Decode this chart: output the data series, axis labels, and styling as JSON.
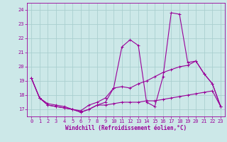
{
  "xlabel": "Windchill (Refroidissement éolien,°C)",
  "background_color": "#cce8e8",
  "grid_color": "#aacfcf",
  "line_color": "#990099",
  "xlim": [
    -0.5,
    23.5
  ],
  "ylim": [
    16.5,
    24.5
  ],
  "yticks": [
    17,
    18,
    19,
    20,
    21,
    22,
    23,
    24
  ],
  "xticks": [
    0,
    1,
    2,
    3,
    4,
    5,
    6,
    7,
    8,
    9,
    10,
    11,
    12,
    13,
    14,
    15,
    16,
    17,
    18,
    19,
    20,
    21,
    22,
    23
  ],
  "series": [
    {
      "x": [
        0,
        1,
        2,
        3,
        4,
        5,
        6,
        7,
        8,
        9,
        10,
        11,
        12,
        13,
        14,
        15,
        16,
        17,
        18,
        19,
        20,
        21,
        22,
        23
      ],
      "y": [
        19.2,
        17.8,
        17.3,
        17.2,
        17.1,
        17.0,
        16.8,
        17.0,
        17.3,
        17.5,
        18.5,
        21.4,
        21.9,
        21.5,
        17.5,
        17.2,
        19.3,
        23.8,
        23.7,
        20.3,
        20.4,
        19.5,
        18.8,
        17.2
      ]
    },
    {
      "x": [
        0,
        1,
        2,
        3,
        4,
        5,
        6,
        7,
        8,
        9,
        10,
        11,
        12,
        13,
        14,
        15,
        16,
        17,
        18,
        19,
        20,
        21,
        22,
        23
      ],
      "y": [
        19.2,
        17.8,
        17.4,
        17.3,
        17.2,
        17.0,
        16.9,
        17.3,
        17.5,
        17.8,
        18.5,
        18.6,
        18.5,
        18.8,
        19.0,
        19.3,
        19.6,
        19.8,
        20.0,
        20.1,
        20.4,
        19.5,
        18.8,
        17.2
      ]
    },
    {
      "x": [
        0,
        1,
        2,
        3,
        4,
        5,
        6,
        7,
        8,
        9,
        10,
        11,
        12,
        13,
        14,
        15,
        16,
        17,
        18,
        19,
        20,
        21,
        22,
        23
      ],
      "y": [
        19.2,
        17.8,
        17.3,
        17.2,
        17.1,
        17.0,
        16.8,
        17.0,
        17.3,
        17.3,
        17.4,
        17.5,
        17.5,
        17.5,
        17.6,
        17.6,
        17.7,
        17.8,
        17.9,
        18.0,
        18.1,
        18.2,
        18.3,
        17.2
      ]
    }
  ]
}
